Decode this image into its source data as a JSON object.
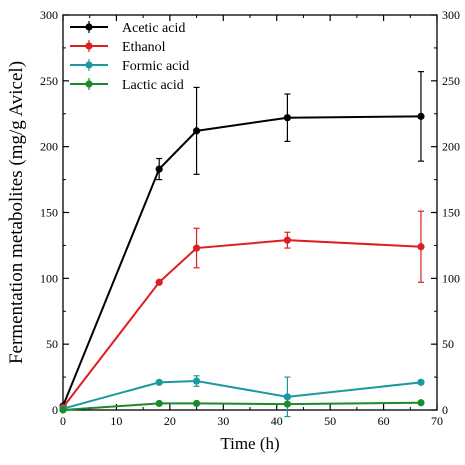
{
  "chart_data": {
    "type": "line",
    "xlabel": "Time (h)",
    "ylabel": "Fermentation metabolites (mg/g Avicel)",
    "xlim": [
      0,
      70
    ],
    "ylim": [
      0,
      300
    ],
    "x_ticks": [
      0,
      10,
      20,
      30,
      40,
      50,
      60,
      70
    ],
    "y_ticks": [
      0,
      50,
      100,
      150,
      200,
      250,
      300
    ],
    "right_axis_mirrored": true,
    "grid": false,
    "legend_position": "top-left",
    "series": [
      {
        "name": "Acetic acid",
        "color": "#000000",
        "x": [
          0,
          18,
          25,
          42,
          67
        ],
        "y": [
          3,
          183,
          212,
          222,
          223
        ],
        "err": [
          0,
          8,
          33,
          18,
          34
        ]
      },
      {
        "name": "Ethanol",
        "color": "#dd1f1f",
        "x": [
          0,
          18,
          25,
          42,
          67
        ],
        "y": [
          2,
          97,
          123,
          129,
          124
        ],
        "err": [
          0,
          0,
          15,
          6,
          27
        ]
      },
      {
        "name": "Formic acid",
        "color": "#1a9aa0",
        "x": [
          0,
          18,
          25,
          42,
          67
        ],
        "y": [
          1,
          21,
          22,
          10,
          21
        ],
        "err": [
          0,
          0,
          4,
          15,
          0
        ]
      },
      {
        "name": "Lactic acid",
        "color": "#1a8a2a",
        "x": [
          0,
          18,
          25,
          42,
          67
        ],
        "y": [
          0,
          5,
          5,
          4.5,
          5.5
        ],
        "err": [
          0,
          0,
          0,
          0,
          0
        ]
      }
    ]
  }
}
